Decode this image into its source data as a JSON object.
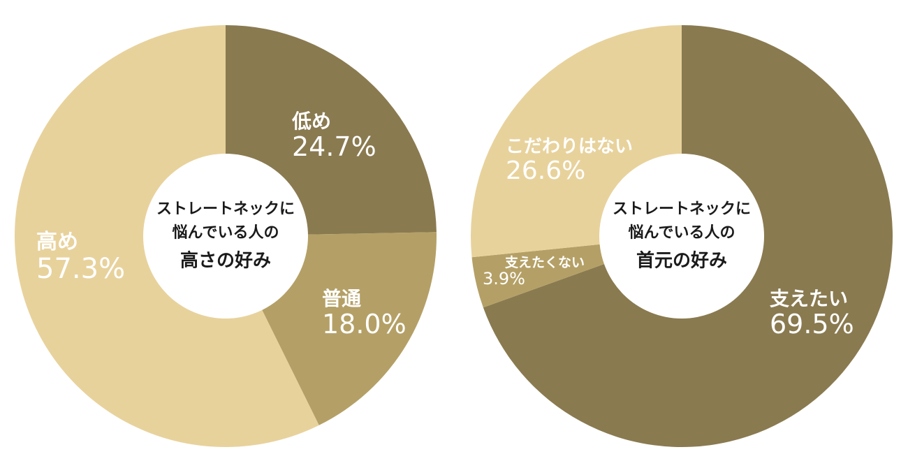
{
  "colors": {
    "dark": "#8a7a50",
    "mid": "#b4a066",
    "light": "#e8d29c",
    "hole": "#ffffff"
  },
  "chart_data": [
    {
      "type": "pie",
      "center_text": [
        "ストレートネックに",
        "悩んでいる人の",
        "高さの好み"
      ],
      "slices": [
        {
          "label": "低め",
          "value": 24.7,
          "value_text": "24.7%",
          "color": "#8a7a50"
        },
        {
          "label": "普通",
          "value": 18.0,
          "value_text": "18.0%",
          "color": "#b4a066"
        },
        {
          "label": "高め",
          "value": 57.3,
          "value_text": "57.3%",
          "color": "#e8d29c"
        }
      ]
    },
    {
      "type": "pie",
      "center_text": [
        "ストレートネックに",
        "悩んでいる人の",
        "首元の好み"
      ],
      "slices": [
        {
          "label": "支えたい",
          "value": 69.5,
          "value_text": "69.5%",
          "color": "#8a7a50"
        },
        {
          "label": "支えたくない",
          "value": 3.9,
          "value_text": "3.9%",
          "color": "#b4a066"
        },
        {
          "label": "こだわりはない",
          "value": 26.6,
          "value_text": "26.6%",
          "color": "#e8d29c"
        }
      ]
    }
  ]
}
